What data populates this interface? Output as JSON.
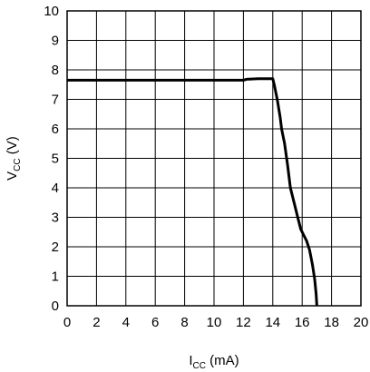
{
  "chart_data": {
    "type": "line",
    "title": "",
    "xlabel": {
      "main": "I",
      "sub": "CC",
      "unit": " (mA)"
    },
    "ylabel": {
      "main": "V",
      "sub": "CC",
      "unit": " (V)"
    },
    "xlim": [
      0,
      20
    ],
    "ylim": [
      0,
      10
    ],
    "xticks": [
      "0",
      "2",
      "4",
      "6",
      "8",
      "10",
      "12",
      "14",
      "16",
      "18",
      "20"
    ],
    "yticks": [
      "0",
      "1",
      "2",
      "3",
      "4",
      "5",
      "6",
      "7",
      "8",
      "9",
      "10"
    ],
    "grid": true,
    "legend": "none",
    "line_color": "#000000",
    "series": [
      {
        "x": [
          0,
          12.0,
          12.2,
          13.0,
          14.0,
          14.1,
          14.3,
          14.5,
          14.6,
          14.8,
          15.0,
          15.2,
          15.5,
          15.7,
          15.9,
          16.1,
          16.3,
          16.5,
          16.7,
          16.85,
          16.95,
          17.0
        ],
        "y": [
          7.65,
          7.65,
          7.68,
          7.7,
          7.7,
          7.5,
          7.0,
          6.4,
          6.0,
          5.5,
          4.8,
          4.0,
          3.4,
          3.0,
          2.6,
          2.4,
          2.2,
          1.9,
          1.4,
          0.9,
          0.4,
          0.0
        ]
      }
    ]
  }
}
